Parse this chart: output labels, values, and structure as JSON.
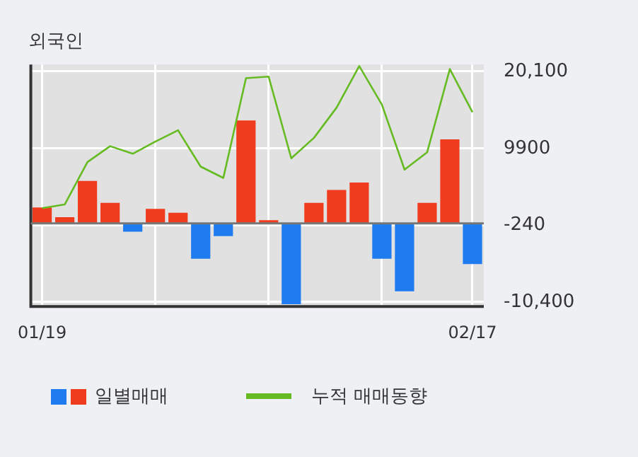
{
  "chart_data": {
    "type": "bar",
    "title": "외국인",
    "categories": [
      "01/19",
      null,
      null,
      null,
      null,
      null,
      null,
      null,
      null,
      null,
      null,
      null,
      null,
      null,
      null,
      null,
      null,
      null,
      null,
      "02/17"
    ],
    "series": [
      {
        "name": "일별매매",
        "colors": [
          "#f03c1e",
          "#f03c1e",
          "#f03c1e",
          "#f03c1e",
          "#1e7bf0",
          "#f03c1e",
          "#f03c1e",
          "#1e7bf0",
          "#1e7bf0",
          "#f03c1e",
          "#f03c1e",
          "#1e7bf0",
          "#f03c1e",
          "#f03c1e",
          "#f03c1e",
          "#1e7bf0",
          "#1e7bf0",
          "#f03c1e",
          "#f03c1e",
          "#1e7bf0"
        ],
        "values": [
          2100,
          800,
          5600,
          2700,
          -1100,
          1900,
          1400,
          -4700,
          -1700,
          13600,
          400,
          -10700,
          2700,
          4400,
          5400,
          -4700,
          -9000,
          2700,
          11100,
          -5400
        ]
      },
      {
        "name": "누적 매매동향",
        "type": "line",
        "color": "#66bb22",
        "values": [
          2000,
          2500,
          8100,
          10200,
          9200,
          10800,
          12300,
          7500,
          6000,
          19200,
          19400,
          8600,
          11300,
          15300,
          20800,
          15700,
          7100,
          9400,
          20400,
          14700
        ]
      }
    ],
    "ylim": [
      -11000,
      21000
    ],
    "yticks": [
      {
        "value": -10400,
        "label": "-10,400"
      },
      -240,
      9900,
      {
        "value": 20100,
        "label": "20,100"
      }
    ],
    "grid": true,
    "legend": "bottom left",
    "marker": "none"
  }
}
